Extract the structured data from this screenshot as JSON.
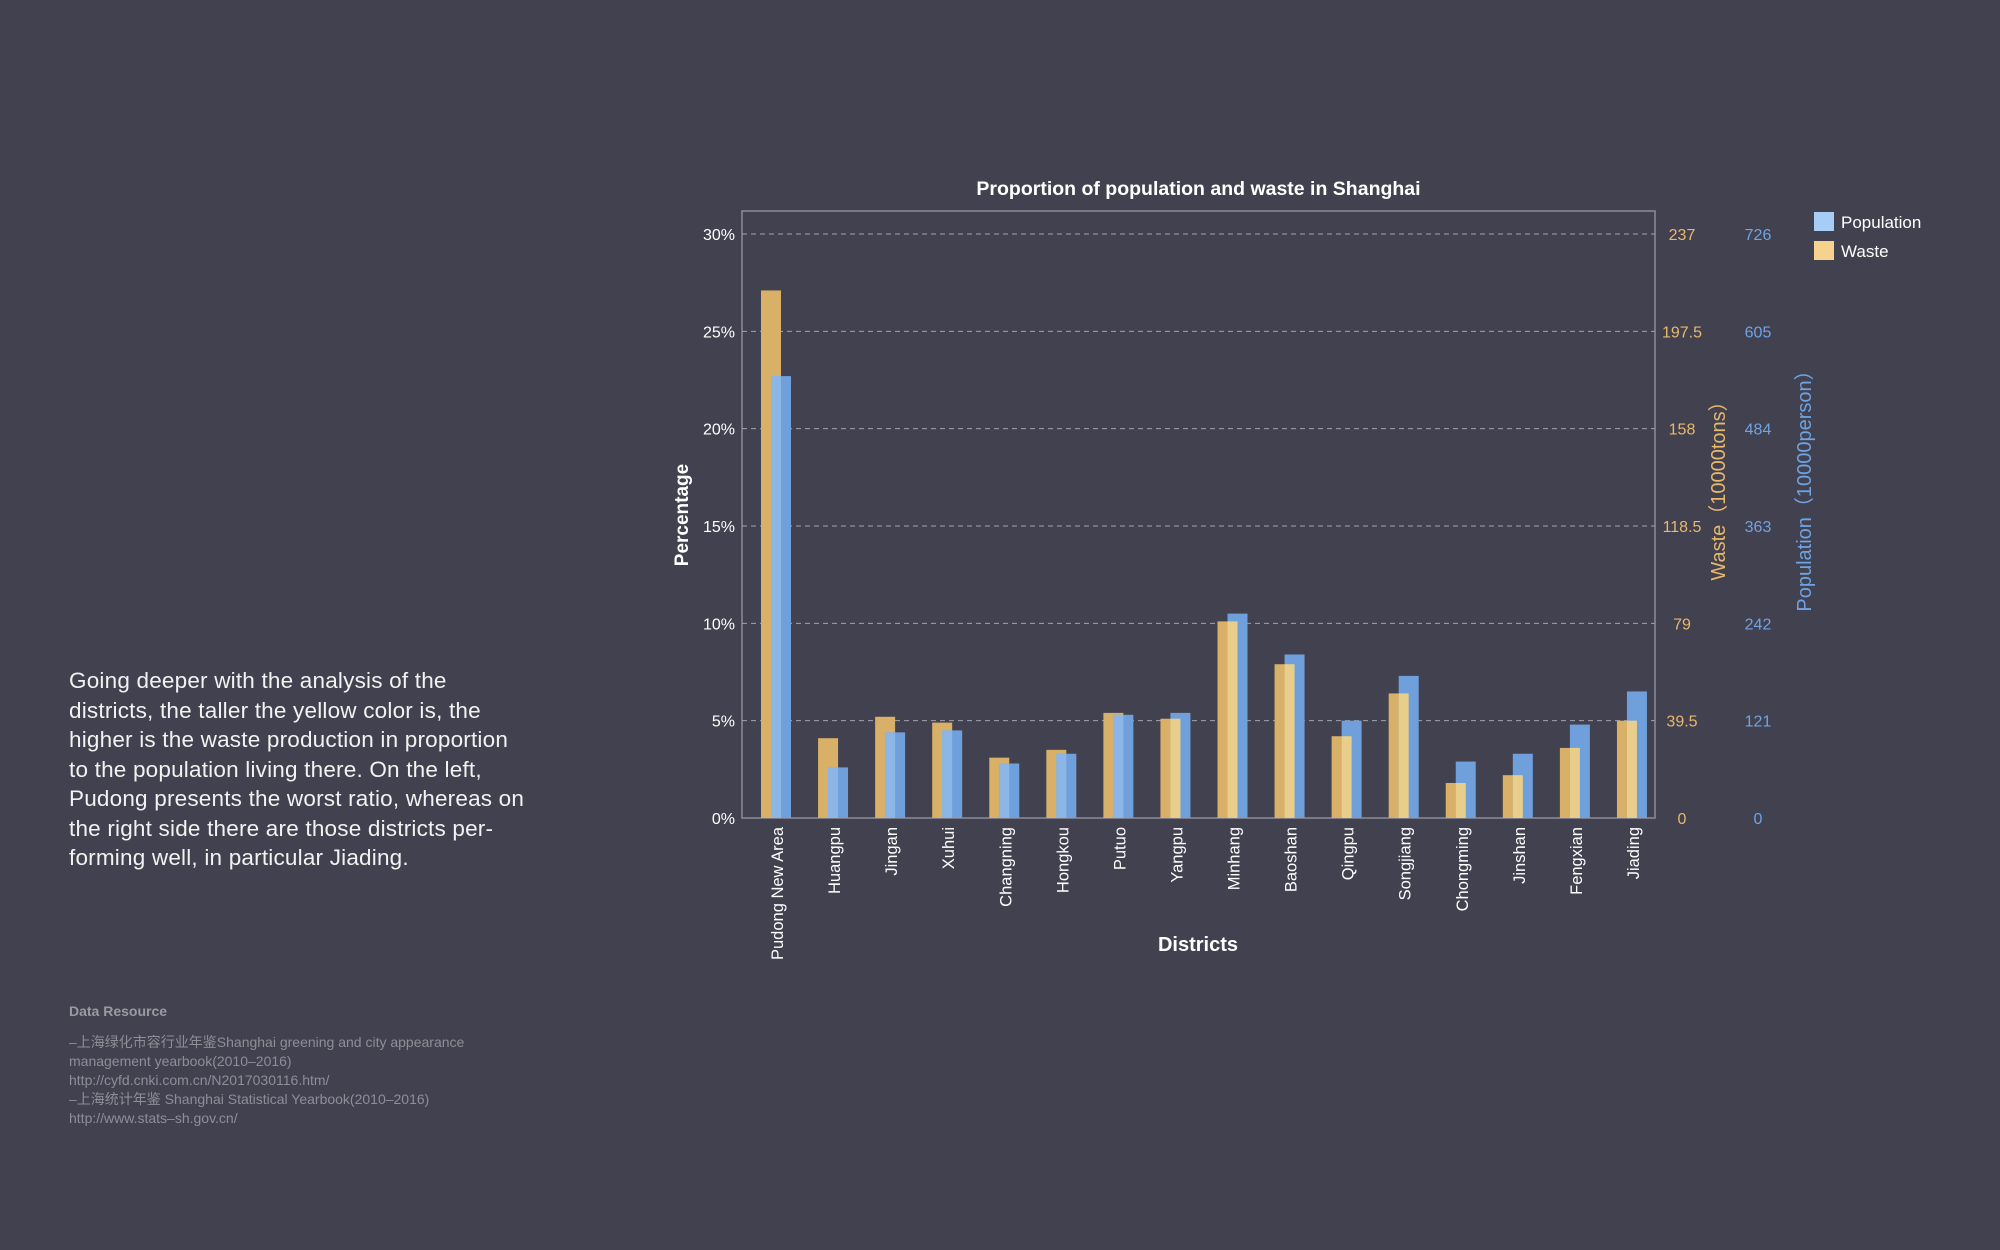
{
  "description": "Going deeper with the analysis of the districts, the taller the yellow color is, the higher is the waste production in proportion to the population living there. On the left, Pudong presents the worst ratio, whereas on the right side there are those districts performing well, in particular Jiading.",
  "description_lines": [
    "Going deeper with the analysis of the",
    "districts, the taller the yellow color is, the",
    "higher is the waste production in proportion",
    "to the population living there. On the left,",
    "Pudong presents the worst ratio, whereas on",
    "the right side there are those districts per-",
    "forming well, in particular Jiading."
  ],
  "data_resource": {
    "title": "Data Resource",
    "lines": [
      "–上海绿化市容行业年鉴Shanghai greening and city appearance",
      "management yearbook(2010–2016)",
      "http://cyfd.cnki.com.cn/N2017030116.htm/",
      "–上海统计年鉴 Shanghai Statistical Yearbook(2010–2016)",
      "http://www.stats–sh.gov.cn/"
    ]
  },
  "colors": {
    "background": "#42414f",
    "waste_bar": "#d8b068",
    "waste_bar_light": "#e9cd8a",
    "population_bar": "#6fa0dc",
    "population_bar_light": "#8cb6e6",
    "waste_axis": "#e8b86b",
    "population_axis": "#6fa3e3",
    "legend_population": "#a7cdf7",
    "legend_waste": "#f7d28e"
  },
  "chart_data": {
    "type": "bar",
    "title": "Proportion of population and waste in Shanghai",
    "xlabel": "Districts",
    "ylabel": "Percentage",
    "y2label": "Waste（10000tons）",
    "y3label": "Population（10000person）",
    "ylim": [
      0,
      30
    ],
    "yticks": [
      "0%",
      "5%",
      "10%",
      "15%",
      "20%",
      "25%",
      "30%"
    ],
    "waste_ticks": [
      "0",
      "39.5",
      "79",
      "118.5",
      "158",
      "197.5",
      "237"
    ],
    "population_ticks": [
      "0",
      "121",
      "242",
      "363",
      "484",
      "605",
      "726"
    ],
    "grid": true,
    "legend_position": "top-right",
    "categories": [
      "Pudong New Area",
      "Huangpu",
      "Jingan",
      "Xuhui",
      "Changning",
      "Hongkou",
      "Putuo",
      "Yangpu",
      "Minhang",
      "Baoshan",
      "Qingpu",
      "Songjiang",
      "Chongming",
      "Jinshan",
      "Fengxian",
      "Jiading"
    ],
    "series": [
      {
        "name": "Population",
        "values": [
          22.7,
          2.6,
          4.4,
          4.5,
          2.8,
          3.3,
          5.3,
          5.4,
          10.5,
          8.4,
          5.0,
          7.3,
          2.9,
          3.3,
          4.8,
          6.5
        ]
      },
      {
        "name": "Waste",
        "values": [
          27.1,
          4.1,
          5.2,
          4.9,
          3.1,
          3.5,
          5.4,
          5.1,
          10.1,
          7.9,
          4.2,
          6.4,
          1.8,
          2.2,
          3.6,
          5.0
        ]
      }
    ]
  }
}
